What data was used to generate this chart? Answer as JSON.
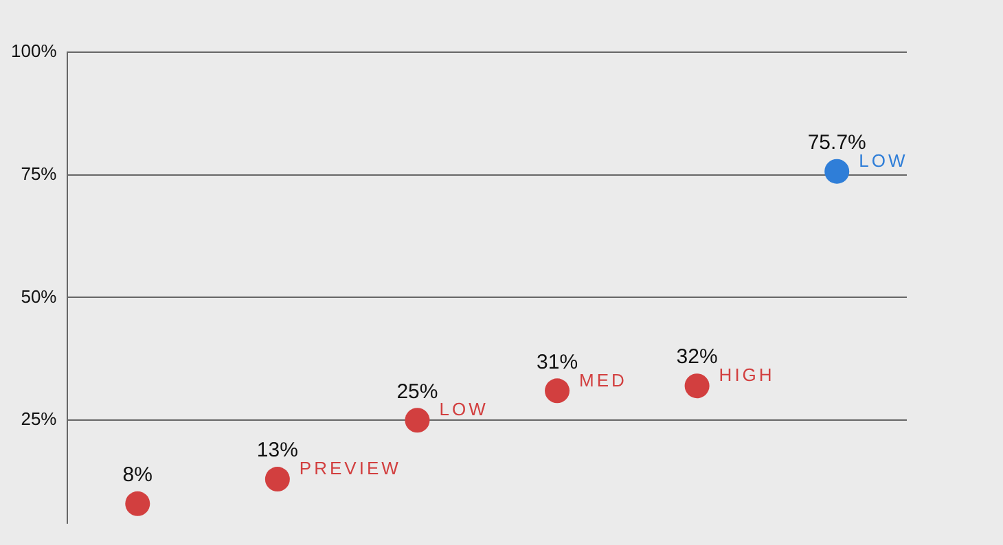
{
  "chart_data": {
    "type": "scatter",
    "tick_labels": "y",
    "grid": "y",
    "legend": false,
    "marker": "circle",
    "categories": [
      null,
      null,
      null,
      null,
      null,
      null
    ],
    "ylim": [
      4,
      100
    ],
    "yticks": [
      {
        "value": 25,
        "label": "25%"
      },
      {
        "value": 50,
        "label": "50%"
      },
      {
        "value": 75,
        "label": "75%"
      },
      {
        "value": 100,
        "label": "100%"
      }
    ],
    "series": [
      {
        "color": "#d23f3f",
        "values": [
          8,
          13,
          25,
          31,
          32,
          null
        ],
        "value_labels": [
          "8%",
          "13%",
          "25%",
          "31%",
          "32%",
          null
        ]
      },
      {
        "color": "#2f7ed8",
        "values": [
          null,
          null,
          null,
          null,
          null,
          75.7
        ],
        "value_labels": [
          null,
          null,
          null,
          null,
          null,
          "75.7%"
        ]
      }
    ],
    "annotations": [
      "PREVIEW",
      "LOW",
      "MED",
      "HIGH",
      "LOW"
    ]
  }
}
